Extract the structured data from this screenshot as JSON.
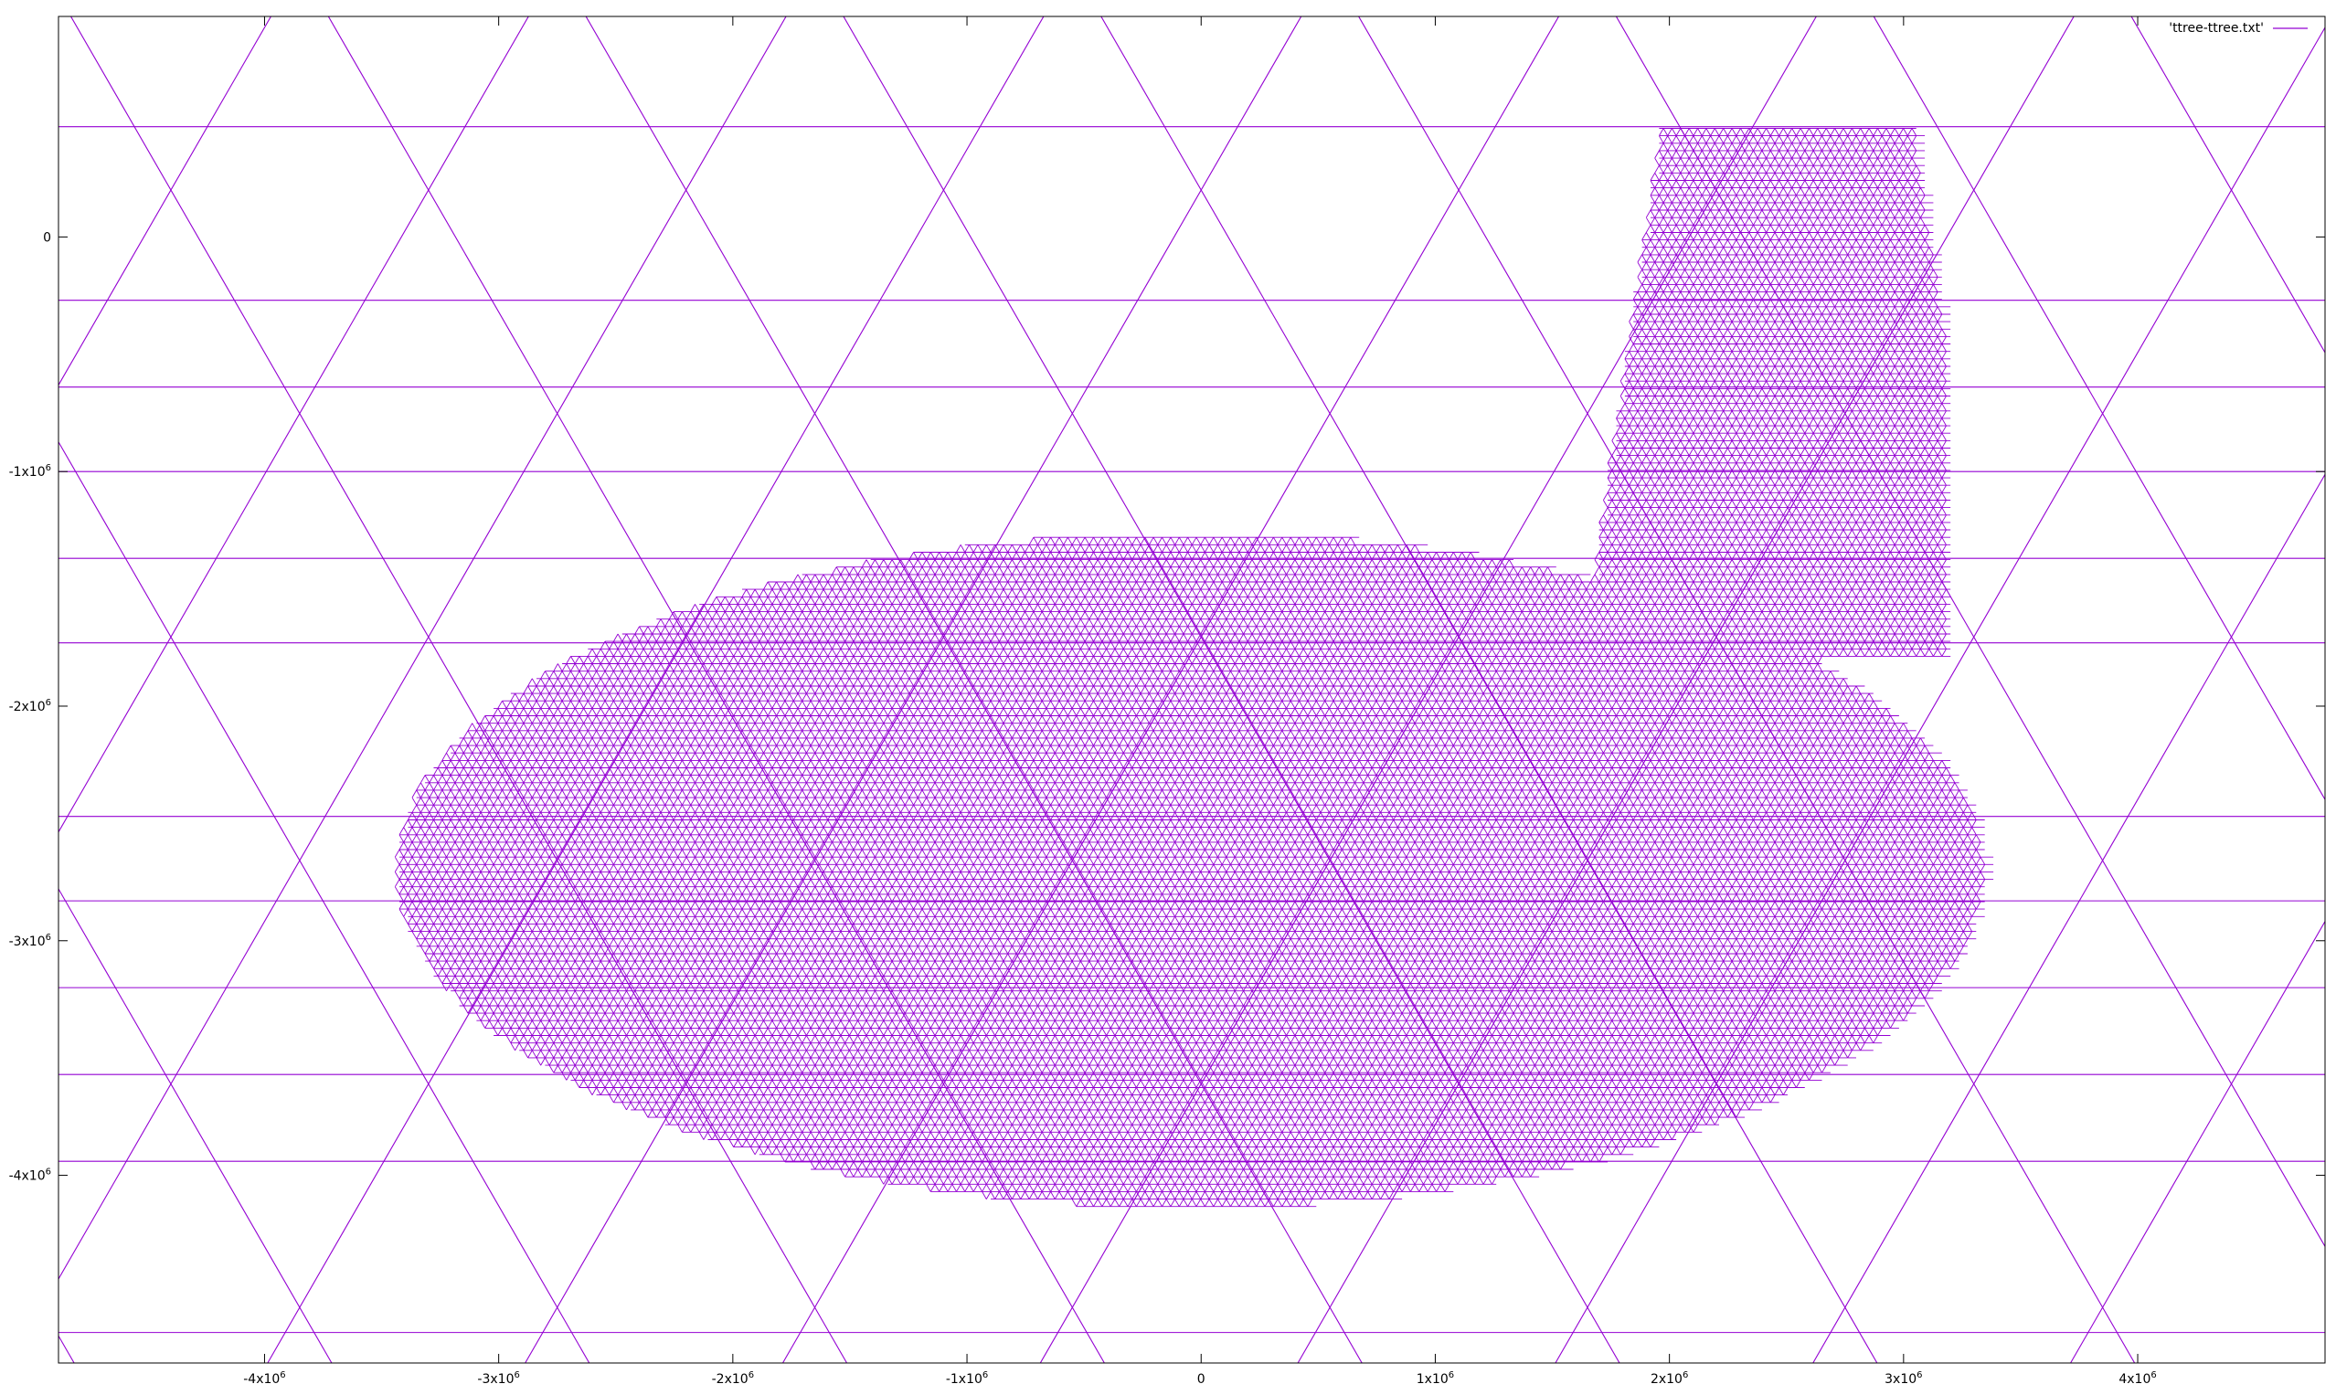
{
  "chart_data": {
    "type": "line",
    "title": "",
    "xlabel": "",
    "ylabel": "",
    "xlim": [
      -4880000,
      4800000
    ],
    "ylim": [
      -4800000,
      940000
    ],
    "grid": false,
    "legend_position": "top-right",
    "series": [
      {
        "name": "'ttree-ttree.txt'",
        "color": "#9400d3",
        "description": "triangular tree mesh (outline edges)",
        "horizontal_lines_y": [
          470000,
          -270000,
          -640000,
          -1000000,
          -1370000,
          -1730000,
          -2470000,
          -2830000,
          -3200000,
          -3570000,
          -3940000,
          -4670000
        ],
        "mesh_region_x": [
          -3900000,
          3850000
        ],
        "mesh_region_y": [
          -4450000,
          470000
        ]
      }
    ],
    "x_ticks": [
      {
        "value": -4000000,
        "label": "-4x10",
        "exp": "6"
      },
      {
        "value": -3000000,
        "label": "-3x10",
        "exp": "6"
      },
      {
        "value": -2000000,
        "label": "-2x10",
        "exp": "6"
      },
      {
        "value": -1000000,
        "label": "-1x10",
        "exp": "6"
      },
      {
        "value": 0,
        "label": "0",
        "exp": ""
      },
      {
        "value": 1000000,
        "label": "1x10",
        "exp": "6"
      },
      {
        "value": 2000000,
        "label": "2x10",
        "exp": "6"
      },
      {
        "value": 3000000,
        "label": "3x10",
        "exp": "6"
      },
      {
        "value": 4000000,
        "label": "4x10",
        "exp": "6"
      }
    ],
    "y_ticks": [
      {
        "value": 0,
        "label": "0",
        "exp": ""
      },
      {
        "value": -1000000,
        "label": "-1x10",
        "exp": "6"
      },
      {
        "value": -2000000,
        "label": "-2x10",
        "exp": "6"
      },
      {
        "value": -3000000,
        "label": "-3x10",
        "exp": "6"
      },
      {
        "value": -4000000,
        "label": "-4x10",
        "exp": "6"
      }
    ]
  }
}
